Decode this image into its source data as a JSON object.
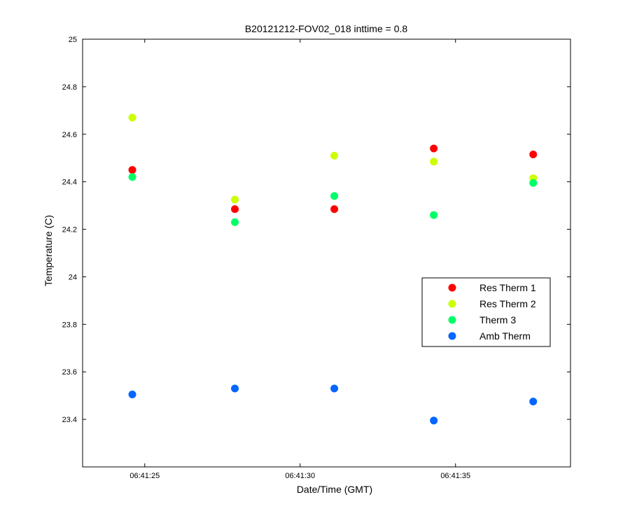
{
  "chart_data": {
    "type": "scatter",
    "title": "B20121212-FOV02_018 inttime = 0.8",
    "xlabel": "Date/Time (GMT)",
    "ylabel": "Temperature (C)",
    "x_unit": "time",
    "xlim": [
      "06:41:23",
      "06:41:38.7"
    ],
    "ylim": [
      23.2,
      25
    ],
    "x_ticks": [
      "06:41:25",
      "06:41:30",
      "06:41:35"
    ],
    "y_ticks": [
      "23.4",
      "23.6",
      "23.8",
      "24",
      "24.2",
      "24.4",
      "24.6",
      "24.8",
      "25"
    ],
    "x": [
      "06:41:24.6",
      "06:41:27.9",
      "06:41:31.1",
      "06:41:34.3",
      "06:41:37.5"
    ],
    "series": [
      {
        "name": "Res Therm 1",
        "color": "#ff0000",
        "values": [
          24.45,
          24.285,
          24.285,
          24.54,
          24.515
        ]
      },
      {
        "name": "Res Therm 2",
        "color": "#ccff00",
        "values": [
          24.67,
          24.325,
          24.51,
          24.485,
          24.415
        ]
      },
      {
        "name": "Therm 3",
        "color": "#00ff66",
        "values": [
          24.42,
          24.23,
          24.34,
          24.26,
          24.395
        ]
      },
      {
        "name": "Amb Therm",
        "color": "#0066ff",
        "values": [
          23.505,
          23.53,
          23.53,
          23.395,
          23.475
        ]
      }
    ],
    "legend_position": "right",
    "grid": false
  }
}
